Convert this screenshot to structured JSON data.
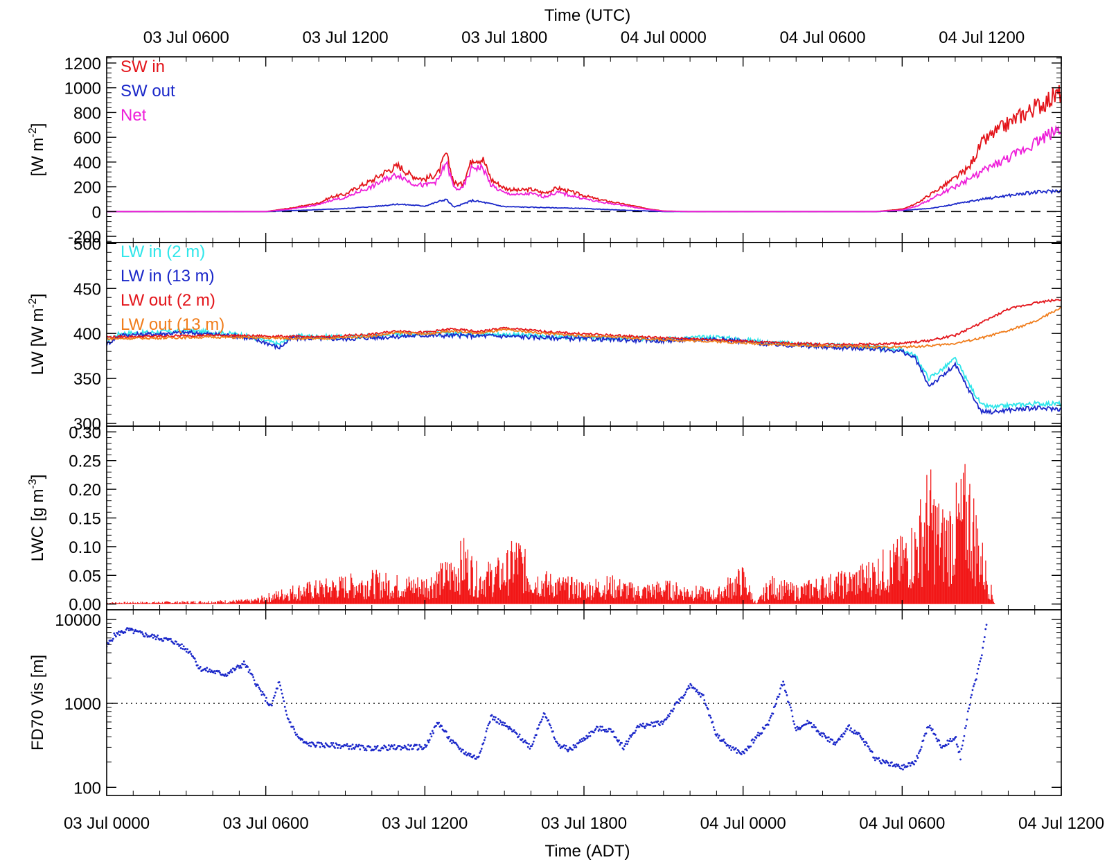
{
  "colors": {
    "sw_in": "#e3141a",
    "sw_out": "#1a27c9",
    "net": "#ee1fd9",
    "lw_in_2m": "#2ee6ea",
    "lw_in_13m": "#1a27c9",
    "lw_out_2m": "#e3141a",
    "lw_out_13m": "#f07d1c",
    "lwc": "#f21717",
    "vis": "#1a27c9",
    "axes": "#000000"
  },
  "x_axes": {
    "top_title": "Time (UTC)",
    "bottom_title": "Time (ADT)",
    "range_hours": [
      0,
      36
    ],
    "top_ticks": [
      {
        "x": 3,
        "label": "03 Jul 0600"
      },
      {
        "x": 9,
        "label": "03 Jul 1200"
      },
      {
        "x": 15,
        "label": "03 Jul 1800"
      },
      {
        "x": 21,
        "label": "04 Jul 0000"
      },
      {
        "x": 27,
        "label": "04 Jul 0600"
      },
      {
        "x": 33,
        "label": "04 Jul 1200"
      }
    ],
    "bottom_ticks": [
      {
        "x": 0,
        "label": "03 Jul 0000"
      },
      {
        "x": 6,
        "label": "03 Jul 0600"
      },
      {
        "x": 12,
        "label": "03 Jul 1200"
      },
      {
        "x": 18,
        "label": "03 Jul 1800"
      },
      {
        "x": 24,
        "label": "04 Jul 0000"
      },
      {
        "x": 30,
        "label": "04 Jul 0600"
      },
      {
        "x": 36,
        "label": "04 Jul 1200"
      }
    ]
  },
  "chart_data": [
    {
      "type": "line",
      "panel": "shortwave",
      "ylabel": "[W m",
      "ylabel_sup": "-2",
      "ylabel_close": "]",
      "ylim": [
        -250,
        1250
      ],
      "yticks": [
        {
          "v": 1200,
          "label": "1200"
        },
        {
          "v": 1000,
          "label": "1000"
        },
        {
          "v": 800,
          "label": "800"
        },
        {
          "v": 600,
          "label": "600"
        },
        {
          "v": 400,
          "label": "400"
        },
        {
          "v": 200,
          "label": "200"
        },
        {
          "v": 0,
          "label": "0"
        },
        {
          "v": -200,
          "label": "-200"
        }
      ],
      "zero_line": {
        "y": 0,
        "style": "dashed"
      },
      "series": [
        {
          "name": "SW in",
          "color_key": "sw_in",
          "x": [
            0,
            6,
            7,
            8,
            8.5,
            9,
            9.5,
            10,
            10.5,
            11,
            11.5,
            12,
            12.5,
            12.8,
            13.1,
            13.4,
            13.8,
            14.2,
            14.5,
            15,
            15.5,
            16,
            16.5,
            17,
            17.5,
            18,
            18.5,
            19,
            19.5,
            20,
            20.5,
            21,
            22,
            24,
            26,
            28,
            29,
            30,
            30.5,
            31,
            31.5,
            32,
            32.5,
            33,
            33.5,
            34,
            34.5,
            35,
            35.5,
            36
          ],
          "y": [
            0,
            0,
            30,
            70,
            120,
            140,
            200,
            250,
            320,
            370,
            290,
            260,
            310,
            470,
            230,
            220,
            430,
            420,
            260,
            190,
            170,
            180,
            150,
            190,
            160,
            130,
            100,
            80,
            60,
            40,
            20,
            5,
            0,
            0,
            0,
            0,
            0,
            20,
            60,
            130,
            200,
            270,
            350,
            550,
            640,
            710,
            780,
            840,
            900,
            960
          ]
        },
        {
          "name": "SW out",
          "color_key": "sw_out",
          "x": [
            0,
            6,
            7,
            8,
            9,
            10,
            11,
            12,
            12.8,
            13.1,
            13.8,
            14.2,
            15,
            16,
            17,
            18,
            19,
            20,
            21,
            28,
            29,
            30,
            31,
            31.5,
            32,
            33,
            34,
            35,
            36
          ],
          "y": [
            0,
            0,
            8,
            15,
            25,
            40,
            60,
            45,
            100,
            35,
            90,
            75,
            40,
            35,
            30,
            25,
            15,
            8,
            0,
            0,
            0,
            8,
            25,
            40,
            60,
            100,
            130,
            155,
            170
          ]
        },
        {
          "name": "Net",
          "color_key": "net",
          "x": [
            0,
            6,
            7,
            8,
            8.5,
            9,
            9.5,
            10,
            10.5,
            11,
            11.5,
            12,
            12.5,
            12.8,
            13.1,
            13.4,
            13.8,
            14.2,
            14.5,
            15,
            15.5,
            16,
            16.5,
            17,
            17.5,
            18,
            18.5,
            19,
            19.5,
            20,
            20.5,
            21,
            22,
            24,
            26,
            28,
            29,
            30,
            30.5,
            31,
            31.5,
            32,
            32.5,
            33,
            33.5,
            34,
            34.5,
            35,
            35.5,
            36
          ],
          "y": [
            0,
            0,
            22,
            55,
            95,
            110,
            160,
            200,
            260,
            300,
            230,
            210,
            250,
            400,
            190,
            180,
            360,
            350,
            210,
            150,
            135,
            145,
            120,
            155,
            130,
            105,
            80,
            65,
            50,
            30,
            15,
            3,
            0,
            0,
            0,
            0,
            0,
            12,
            40,
            90,
            150,
            200,
            260,
            320,
            380,
            430,
            490,
            560,
            620,
            680
          ]
        }
      ]
    },
    {
      "type": "line",
      "panel": "longwave",
      "ylabel": "LW [W m",
      "ylabel_sup": "-2",
      "ylabel_close": "]",
      "ylim": [
        297,
        501
      ],
      "yticks": [
        {
          "v": 500,
          "label": "500"
        },
        {
          "v": 450,
          "label": "450"
        },
        {
          "v": 400,
          "label": "400"
        },
        {
          "v": 350,
          "label": "350"
        },
        {
          "v": 300,
          "label": "300"
        }
      ],
      "series": [
        {
          "name": "LW in (2 m)",
          "color_key": "lw_in_2m",
          "x": [
            0,
            0.5,
            1.5,
            3,
            5,
            6,
            6.5,
            7,
            9,
            12,
            15,
            18,
            21,
            23,
            25,
            27,
            29,
            30,
            30.5,
            31,
            31.5,
            32,
            32.5,
            33,
            33.5,
            34,
            35,
            36
          ],
          "y": [
            392,
            400,
            401,
            403,
            399,
            392,
            388,
            397,
            396,
            400,
            399,
            395,
            394,
            396,
            390,
            387,
            385,
            382,
            375,
            350,
            360,
            372,
            345,
            320,
            318,
            320,
            322,
            322
          ]
        },
        {
          "name": "LW in (13 m)",
          "color_key": "lw_in_13m",
          "x": [
            0,
            0.5,
            1.5,
            3,
            5,
            6,
            6.5,
            7,
            9,
            12,
            15,
            18,
            21,
            23,
            25,
            27,
            29,
            30,
            30.5,
            31,
            31.5,
            32,
            32.5,
            33,
            33.5,
            34,
            35,
            36
          ],
          "y": [
            388,
            398,
            399,
            401,
            397,
            390,
            384,
            395,
            394,
            398,
            397,
            394,
            392,
            394,
            388,
            385,
            383,
            380,
            372,
            342,
            352,
            365,
            338,
            313,
            313,
            315,
            317,
            316
          ]
        },
        {
          "name": "LW out (2 m)",
          "color_key": "lw_out_2m",
          "x": [
            0,
            2,
            4,
            6,
            8,
            10,
            11,
            12,
            13,
            14,
            15,
            17,
            19,
            21,
            23,
            25,
            27,
            29,
            30,
            31,
            32,
            33,
            34,
            35,
            36
          ],
          "y": [
            396,
            397,
            398,
            397,
            396,
            399,
            403,
            401,
            405,
            402,
            406,
            401,
            398,
            395,
            393,
            390,
            388,
            388,
            389,
            392,
            398,
            412,
            427,
            434,
            438
          ]
        },
        {
          "name": "LW out (13 m)",
          "color_key": "lw_out_13m",
          "x": [
            0,
            2,
            4,
            6,
            8,
            10,
            11,
            12,
            13,
            14,
            15,
            17,
            19,
            21,
            23,
            25,
            27,
            29,
            30,
            31,
            32,
            33,
            34,
            35,
            36
          ],
          "y": [
            394,
            395,
            396,
            395,
            394,
            397,
            401,
            399,
            403,
            400,
            404,
            399,
            396,
            393,
            391,
            388,
            386,
            385,
            385,
            386,
            389,
            395,
            403,
            413,
            429
          ]
        }
      ]
    },
    {
      "type": "bar",
      "panel": "lwc",
      "ylabel": "LWC [g m",
      "ylabel_sup": "-3",
      "ylabel_close": "]",
      "ylim": [
        -0.01,
        0.31
      ],
      "yticks": [
        {
          "v": 0.3,
          "label": "0.30"
        },
        {
          "v": 0.25,
          "label": "0.25"
        },
        {
          "v": 0.2,
          "label": "0.20"
        },
        {
          "v": 0.15,
          "label": "0.15"
        },
        {
          "v": 0.1,
          "label": "0.10"
        },
        {
          "v": 0.05,
          "label": "0.05"
        },
        {
          "v": 0.0,
          "label": "0.00"
        }
      ],
      "series": [
        {
          "name": "LWC",
          "color_key": "lwc",
          "x": [
            0,
            3,
            5.5,
            6,
            7,
            8,
            9,
            10,
            11,
            12,
            13,
            13.5,
            14,
            15,
            15.5,
            16,
            17,
            18,
            19,
            20,
            21,
            22,
            23,
            23.5,
            24,
            24.5,
            25,
            26,
            27,
            28,
            29,
            30,
            30.5,
            31,
            31.5,
            32,
            32.5,
            33,
            33.5,
            34,
            36
          ],
          "y": [
            0.002,
            0.003,
            0.005,
            0.01,
            0.02,
            0.025,
            0.03,
            0.035,
            0.03,
            0.03,
            0.05,
            0.07,
            0.04,
            0.05,
            0.075,
            0.04,
            0.03,
            0.025,
            0.03,
            0.02,
            0.025,
            0.02,
            0.015,
            0.03,
            0.04,
            0.0,
            0.03,
            0.02,
            0.03,
            0.035,
            0.05,
            0.07,
            0.09,
            0.145,
            0.1,
            0.12,
            0.15,
            0.07,
            0.0,
            0.0,
            0.0
          ]
        }
      ]
    },
    {
      "type": "scatter",
      "panel": "visibility",
      "ylabel": "FD70 Vis [m]",
      "yscale": "log",
      "ylim": [
        80,
        13000
      ],
      "yticks": [
        {
          "v": 10000,
          "label": "10000"
        },
        {
          "v": 1000,
          "label": "1000"
        },
        {
          "v": 100,
          "label": "100"
        }
      ],
      "threshold_line": {
        "y": 1000,
        "style": "dotted"
      },
      "series": [
        {
          "name": "FD70 Vis",
          "color_key": "vis",
          "x": [
            0,
            0.3,
            0.8,
            1.5,
            2.5,
            3.2,
            3.5,
            4.5,
            5.2,
            5.8,
            6.2,
            6.5,
            6.8,
            7.2,
            7.5,
            8,
            9,
            10,
            11,
            12,
            12.5,
            13,
            13.5,
            14,
            14.5,
            15,
            15.5,
            16,
            16.5,
            17,
            17.5,
            18,
            18.5,
            19,
            19.5,
            20,
            21,
            22,
            22.5,
            23,
            23.5,
            24,
            24.5,
            25,
            25.5,
            26,
            26.5,
            27,
            27.5,
            28,
            28.5,
            29,
            29.5,
            30,
            30.5,
            31,
            31.5,
            32,
            32.2,
            32.5,
            33,
            33.2
          ],
          "y": [
            4800,
            6500,
            7500,
            6500,
            5500,
            4000,
            2600,
            2200,
            3000,
            1400,
            900,
            1800,
            700,
            400,
            330,
            320,
            310,
            290,
            300,
            300,
            600,
            350,
            260,
            220,
            700,
            550,
            420,
            300,
            800,
            320,
            280,
            380,
            500,
            480,
            300,
            520,
            600,
            1600,
            1200,
            420,
            300,
            250,
            400,
            600,
            1800,
            500,
            600,
            420,
            330,
            520,
            380,
            220,
            190,
            170,
            200,
            550,
            300,
            400,
            230,
            850,
            3800,
            10000
          ]
        }
      ]
    }
  ],
  "legends": {
    "shortwave": [
      {
        "label": "SW in",
        "color_key": "sw_in"
      },
      {
        "label": "SW out",
        "color_key": "sw_out"
      },
      {
        "label": "Net",
        "color_key": "net"
      }
    ],
    "longwave": [
      {
        "label": "LW in (2 m)",
        "color_key": "lw_in_2m"
      },
      {
        "label": "LW in (13 m)",
        "color_key": "lw_in_13m"
      },
      {
        "label": "LW out (2 m)",
        "color_key": "lw_out_2m"
      },
      {
        "label": "LW out (13 m)",
        "color_key": "lw_out_13m"
      }
    ]
  }
}
